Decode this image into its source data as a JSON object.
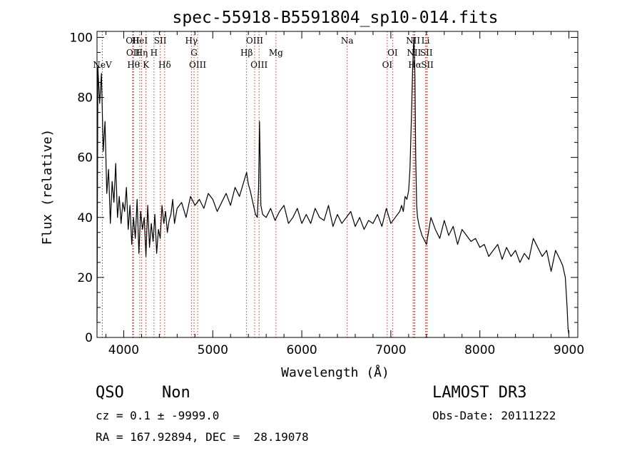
{
  "chart_data": {
    "type": "line",
    "title": "spec-55918-B5591804_sp10-014.fits",
    "xlabel": "Wavelength (Å)",
    "ylabel": "Flux (relative)",
    "xlim": [
      3700,
      9100
    ],
    "ylim": [
      0,
      102
    ],
    "x_ticks": [
      4000,
      5000,
      6000,
      7000,
      8000,
      9000
    ],
    "y_ticks": [
      0,
      20,
      40,
      60,
      80,
      100
    ],
    "x_tick_labels": [
      "4000",
      "5000",
      "6000",
      "7000",
      "8000",
      "9000"
    ],
    "y_tick_labels": [
      "0",
      "20",
      "40",
      "60",
      "80",
      "100"
    ],
    "series": [
      {
        "name": "flux",
        "color": "#000000",
        "x": [
          3700,
          3710,
          3730,
          3750,
          3770,
          3790,
          3810,
          3830,
          3850,
          3870,
          3890,
          3910,
          3930,
          3950,
          3970,
          3990,
          4010,
          4030,
          4050,
          4070,
          4090,
          4110,
          4130,
          4150,
          4170,
          4190,
          4210,
          4230,
          4250,
          4270,
          4290,
          4310,
          4330,
          4350,
          4370,
          4390,
          4410,
          4430,
          4450,
          4470,
          4490,
          4510,
          4530,
          4550,
          4570,
          4600,
          4650,
          4700,
          4750,
          4800,
          4850,
          4900,
          4950,
          5000,
          5050,
          5100,
          5150,
          5200,
          5250,
          5300,
          5350,
          5380,
          5400,
          5420,
          5450,
          5480,
          5500,
          5515,
          5525,
          5540,
          5560,
          5600,
          5650,
          5700,
          5750,
          5800,
          5850,
          5900,
          5950,
          6000,
          6050,
          6100,
          6150,
          6200,
          6250,
          6300,
          6350,
          6400,
          6450,
          6500,
          6550,
          6600,
          6650,
          6700,
          6750,
          6800,
          6850,
          6900,
          6950,
          7000,
          7050,
          7100,
          7120,
          7140,
          7160,
          7180,
          7200,
          7215,
          7230,
          7245,
          7260,
          7270,
          7280,
          7290,
          7300,
          7320,
          7350,
          7400,
          7450,
          7500,
          7550,
          7600,
          7650,
          7700,
          7750,
          7800,
          7850,
          7900,
          7950,
          8000,
          8050,
          8100,
          8150,
          8200,
          8250,
          8300,
          8350,
          8400,
          8450,
          8500,
          8550,
          8600,
          8650,
          8700,
          8750,
          8800,
          8850,
          8900,
          8930,
          8960,
          8980,
          8990,
          9000
        ],
        "y": [
          5,
          90,
          78,
          88,
          62,
          72,
          48,
          56,
          38,
          52,
          45,
          58,
          40,
          47,
          38,
          45,
          42,
          50,
          36,
          44,
          31,
          40,
          33,
          46,
          28,
          42,
          36,
          40,
          27,
          44,
          30,
          38,
          32,
          41,
          28,
          36,
          33,
          44,
          38,
          42,
          35,
          39,
          41,
          46,
          38,
          43,
          45,
          40,
          47,
          44,
          46,
          43,
          48,
          46,
          42,
          45,
          48,
          44,
          50,
          47,
          52,
          55,
          51,
          49,
          45,
          41,
          40,
          50,
          72,
          44,
          41,
          40,
          43,
          39,
          42,
          44,
          38,
          40,
          43,
          38,
          41,
          38,
          43,
          40,
          39,
          44,
          37,
          41,
          38,
          40,
          42,
          37,
          40,
          36,
          39,
          38,
          41,
          37,
          43,
          38,
          40,
          42,
          44,
          42,
          47,
          46,
          49,
          56,
          72,
          90,
          100,
          88,
          60,
          44,
          40,
          37,
          34,
          31,
          40,
          36,
          33,
          39,
          34,
          37,
          31,
          36,
          34,
          32,
          33,
          30,
          31,
          27,
          29,
          31,
          26,
          30,
          27,
          29,
          25,
          28,
          26,
          33,
          30,
          27,
          29,
          22,
          29,
          26,
          24,
          20,
          10,
          3,
          1
        ]
      }
    ],
    "line_markers": [
      {
        "wavelength": 3760,
        "label": "NeV",
        "tier": 3
      },
      {
        "wavelength": 4100,
        "label": "OII",
        "tier": 1
      },
      {
        "wavelength": 4105,
        "label": "OII",
        "tier": 2
      },
      {
        "wavelength": 4110,
        "label": "Hθ",
        "tier": 3
      },
      {
        "wavelength": 4180,
        "label": "HeI",
        "tier": 1
      },
      {
        "wavelength": 4200,
        "label": "Hη",
        "tier": 2
      },
      {
        "wavelength": 4250,
        "label": "K",
        "tier": 3
      },
      {
        "wavelength": 4340,
        "label": "H",
        "tier": 2
      },
      {
        "wavelength": 4410,
        "label": "SII",
        "tier": 1
      },
      {
        "wavelength": 4460,
        "label": "Hδ",
        "tier": 3
      },
      {
        "wavelength": 4760,
        "label": "Hγ",
        "tier": 1
      },
      {
        "wavelength": 4790,
        "label": "G",
        "tier": 2
      },
      {
        "wavelength": 4830,
        "label": "OIII",
        "tier": 3
      },
      {
        "wavelength": 5380,
        "label": "Hβ",
        "tier": 2
      },
      {
        "wavelength": 5470,
        "label": "OIII",
        "tier": 1
      },
      {
        "wavelength": 5520,
        "label": "OIII",
        "tier": 3
      },
      {
        "wavelength": 5710,
        "label": "Mg",
        "tier": 2
      },
      {
        "wavelength": 6510,
        "label": "Na",
        "tier": 1
      },
      {
        "wavelength": 6960,
        "label": "OI",
        "tier": 3
      },
      {
        "wavelength": 7020,
        "label": "OI",
        "tier": 2
      },
      {
        "wavelength": 7250,
        "label": "NII",
        "tier": 1
      },
      {
        "wavelength": 7260,
        "label": "NII",
        "tier": 2
      },
      {
        "wavelength": 7270,
        "label": "Hα",
        "tier": 3
      },
      {
        "wavelength": 7390,
        "label": "Li",
        "tier": 1
      },
      {
        "wavelength": 7400,
        "label": "SII",
        "tier": 2
      },
      {
        "wavelength": 7410,
        "label": "SII",
        "tier": 3
      }
    ],
    "marker_color": "#c0392b",
    "grid": false,
    "legend": "none"
  },
  "info": {
    "object_class": "QSO",
    "subclass": "Non",
    "redshift_line": "cz = 0.1 ± -9999.0",
    "position_line": "RA = 167.92894, DEC =  28.19078",
    "survey": "LAMOST DR3",
    "obs_date": "Obs-Date: 20111222"
  }
}
